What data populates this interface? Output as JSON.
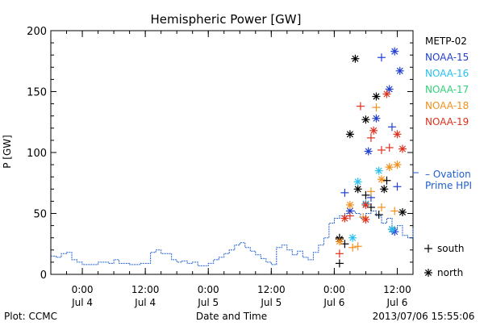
{
  "chart_data": {
    "type": "scatter",
    "title": "Hemispheric Power [GW]",
    "ylabel": "P [GW]",
    "xlabel": "Date and Time",
    "ylim": [
      0,
      200
    ],
    "yticks": [
      0,
      50,
      100,
      150,
      200
    ],
    "xlim": [
      "2013-07-03T18:00",
      "2013-07-06T15:00"
    ],
    "xticks": [
      {
        "time": "2013-07-04T00:00",
        "label": [
          "0:00",
          "Jul 4"
        ]
      },
      {
        "time": "2013-07-04T12:00",
        "label": [
          "12:00",
          "Jul 4"
        ]
      },
      {
        "time": "2013-07-05T00:00",
        "label": [
          "0:00",
          "Jul 5"
        ]
      },
      {
        "time": "2013-07-05T12:00",
        "label": [
          "12:00",
          "Jul 5"
        ]
      },
      {
        "time": "2013-07-06T00:00",
        "label": [
          "0:00",
          "Jul 6"
        ]
      },
      {
        "time": "2013-07-06T12:00",
        "label": [
          "12:00",
          "Jul 6"
        ]
      }
    ],
    "legend_position": "right",
    "legend": [
      {
        "label": "METP-02",
        "color": "#000000"
      },
      {
        "label": "NOAA-15",
        "color": "#1f3fd1"
      },
      {
        "label": "NOAA-16",
        "color": "#28c0f0"
      },
      {
        "label": "NOAA-17",
        "color": "#33d17a"
      },
      {
        "label": "NOAA-18",
        "color": "#f0901e"
      },
      {
        "label": "NOAA-19",
        "color": "#e0301e"
      }
    ],
    "ovation_label": [
      "– Ovation",
      "Prime HPI"
    ],
    "ovation_color": "#1f5fd1",
    "ovation_series": {
      "name": "Ovation Prime HPI",
      "points": [
        [
          "2013-07-03T18:00",
          15
        ],
        [
          "2013-07-03T19:00",
          14
        ],
        [
          "2013-07-03T20:00",
          17
        ],
        [
          "2013-07-03T21:00",
          18
        ],
        [
          "2013-07-03T22:00",
          12
        ],
        [
          "2013-07-03T23:00",
          10
        ],
        [
          "2013-07-04T00:00",
          8
        ],
        [
          "2013-07-04T02:00",
          8
        ],
        [
          "2013-07-04T03:00",
          10
        ],
        [
          "2013-07-04T05:00",
          9
        ],
        [
          "2013-07-04T06:00",
          12
        ],
        [
          "2013-07-04T07:00",
          9
        ],
        [
          "2013-07-04T09:00",
          8
        ],
        [
          "2013-07-04T11:00",
          9
        ],
        [
          "2013-07-04T13:00",
          18
        ],
        [
          "2013-07-04T14:00",
          20
        ],
        [
          "2013-07-04T15:00",
          17
        ],
        [
          "2013-07-04T17:00",
          12
        ],
        [
          "2013-07-04T18:00",
          10
        ],
        [
          "2013-07-04T19:00",
          11
        ],
        [
          "2013-07-04T20:00",
          9
        ],
        [
          "2013-07-04T21:00",
          10
        ],
        [
          "2013-07-04T22:00",
          7
        ],
        [
          "2013-07-05T00:00",
          9
        ],
        [
          "2013-07-05T01:00",
          12
        ],
        [
          "2013-07-05T02:00",
          14
        ],
        [
          "2013-07-05T03:00",
          17
        ],
        [
          "2013-07-05T04:00",
          20
        ],
        [
          "2013-07-05T05:00",
          24
        ],
        [
          "2013-07-05T06:00",
          26
        ],
        [
          "2013-07-05T07:00",
          22
        ],
        [
          "2013-07-05T08:00",
          19
        ],
        [
          "2013-07-05T09:00",
          16
        ],
        [
          "2013-07-05T10:00",
          13
        ],
        [
          "2013-07-05T11:00",
          10
        ],
        [
          "2013-07-05T12:00",
          8
        ],
        [
          "2013-07-05T13:00",
          22
        ],
        [
          "2013-07-05T14:00",
          24
        ],
        [
          "2013-07-05T15:00",
          20
        ],
        [
          "2013-07-05T16:00",
          16
        ],
        [
          "2013-07-05T17:00",
          19
        ],
        [
          "2013-07-05T18:00",
          14
        ],
        [
          "2013-07-05T19:00",
          12
        ],
        [
          "2013-07-05T20:00",
          18
        ],
        [
          "2013-07-05T21:00",
          24
        ],
        [
          "2013-07-05T22:00",
          30
        ],
        [
          "2013-07-05T23:00",
          42
        ],
        [
          "2013-07-06T00:00",
          46
        ],
        [
          "2013-07-06T01:00",
          48
        ],
        [
          "2013-07-06T02:00",
          50
        ],
        [
          "2013-07-06T03:00",
          52
        ],
        [
          "2013-07-06T04:00",
          50
        ],
        [
          "2013-07-06T05:00",
          46
        ],
        [
          "2013-07-06T06:00",
          50
        ],
        [
          "2013-07-06T07:00",
          52
        ],
        [
          "2013-07-06T08:00",
          48
        ],
        [
          "2013-07-06T09:00",
          42
        ],
        [
          "2013-07-06T10:00",
          46
        ],
        [
          "2013-07-06T11:00",
          38
        ],
        [
          "2013-07-06T12:00",
          40
        ],
        [
          "2013-07-06T13:00",
          32
        ],
        [
          "2013-07-06T14:00",
          30
        ],
        [
          "2013-07-06T15:00",
          38
        ]
      ]
    },
    "series": [
      {
        "name": "METP-02",
        "color": "#000000",
        "points": [
          [
            "2013-07-06T01:00",
            30,
            "south"
          ],
          [
            "2013-07-06T01:00",
            9,
            "south"
          ],
          [
            "2013-07-06T02:00",
            25,
            "south"
          ],
          [
            "2013-07-06T04:00",
            177,
            "north"
          ],
          [
            "2013-07-06T03:00",
            115,
            "north"
          ],
          [
            "2013-07-06T06:00",
            127,
            "north"
          ],
          [
            "2013-07-06T04:30",
            70,
            "north"
          ],
          [
            "2013-07-06T06:00",
            65,
            "south"
          ],
          [
            "2013-07-06T08:00",
            146,
            "north"
          ],
          [
            "2013-07-06T09:30",
            70,
            "north"
          ],
          [
            "2013-07-06T10:00",
            77,
            "south"
          ],
          [
            "2013-07-06T07:00",
            55,
            "south"
          ],
          [
            "2013-07-06T08:30",
            49,
            "south"
          ],
          [
            "2013-07-06T11:00",
            37,
            "north"
          ],
          [
            "2013-07-06T13:00",
            51,
            "north"
          ],
          [
            "2013-07-06T01:00",
            29,
            "north"
          ]
        ]
      },
      {
        "name": "NOAA-15",
        "color": "#1f3fd1",
        "points": [
          [
            "2013-07-06T02:00",
            67,
            "south"
          ],
          [
            "2013-07-06T06:30",
            101,
            "north"
          ],
          [
            "2013-07-06T08:00",
            128,
            "north"
          ],
          [
            "2013-07-06T09:00",
            178,
            "south"
          ],
          [
            "2013-07-06T10:30",
            152,
            "north"
          ],
          [
            "2013-07-06T11:30",
            183,
            "north"
          ],
          [
            "2013-07-06T12:30",
            167,
            "north"
          ],
          [
            "2013-07-06T11:00",
            121,
            "south"
          ],
          [
            "2013-07-06T12:00",
            72,
            "south"
          ],
          [
            "2013-07-06T03:00",
            52,
            "north"
          ],
          [
            "2013-07-06T07:00",
            63,
            "south"
          ],
          [
            "2013-07-06T11:30",
            35,
            "north"
          ]
        ]
      },
      {
        "name": "NOAA-16",
        "color": "#28c0f0",
        "points": [
          [
            "2013-07-06T04:30",
            76,
            "north"
          ],
          [
            "2013-07-06T08:30",
            85,
            "north"
          ],
          [
            "2013-07-06T03:30",
            30,
            "north"
          ],
          [
            "2013-07-06T06:00",
            58,
            "north"
          ],
          [
            "2013-07-06T11:00",
            37,
            "north"
          ]
        ]
      },
      {
        "name": "NOAA-18",
        "color": "#f0901e",
        "points": [
          [
            "2013-07-06T03:30",
            22,
            "south"
          ],
          [
            "2013-07-06T04:30",
            23,
            "south"
          ],
          [
            "2013-07-06T03:00",
            57,
            "north"
          ],
          [
            "2013-07-06T05:30",
            47,
            "south"
          ],
          [
            "2013-07-06T07:00",
            68,
            "south"
          ],
          [
            "2013-07-06T09:00",
            78,
            "north"
          ],
          [
            "2013-07-06T08:00",
            137,
            "south"
          ],
          [
            "2013-07-06T10:30",
            88,
            "north"
          ],
          [
            "2013-07-06T12:00",
            90,
            "north"
          ],
          [
            "2013-07-06T01:00",
            27,
            "north"
          ],
          [
            "2013-07-06T11:30",
            52,
            "south"
          ],
          [
            "2013-07-06T09:00",
            55,
            "south"
          ]
        ]
      },
      {
        "name": "NOAA-19",
        "color": "#e0301e",
        "points": [
          [
            "2013-07-06T05:00",
            138,
            "south"
          ],
          [
            "2013-07-06T07:00",
            112,
            "south"
          ],
          [
            "2013-07-06T07:30",
            118,
            "north"
          ],
          [
            "2013-07-06T10:00",
            148,
            "north"
          ],
          [
            "2013-07-06T09:00",
            102,
            "south"
          ],
          [
            "2013-07-06T10:30",
            104,
            "south"
          ],
          [
            "2013-07-06T12:00",
            115,
            "north"
          ],
          [
            "2013-07-06T13:00",
            103,
            "north"
          ],
          [
            "2013-07-06T02:00",
            46,
            "north"
          ],
          [
            "2013-07-06T03:00",
            48,
            "south"
          ],
          [
            "2013-07-06T06:00",
            57,
            "north"
          ],
          [
            "2013-07-06T01:00",
            17,
            "south"
          ],
          [
            "2013-07-06T06:00",
            45,
            "north"
          ]
        ]
      }
    ],
    "marker_legend": [
      {
        "symbol": "+",
        "label": "south"
      },
      {
        "symbol": "*",
        "label": "north"
      }
    ]
  },
  "footer": {
    "left": "Plot: CCMC",
    "center": "Date and Time",
    "right": "2013/07/06 15:55:06"
  }
}
